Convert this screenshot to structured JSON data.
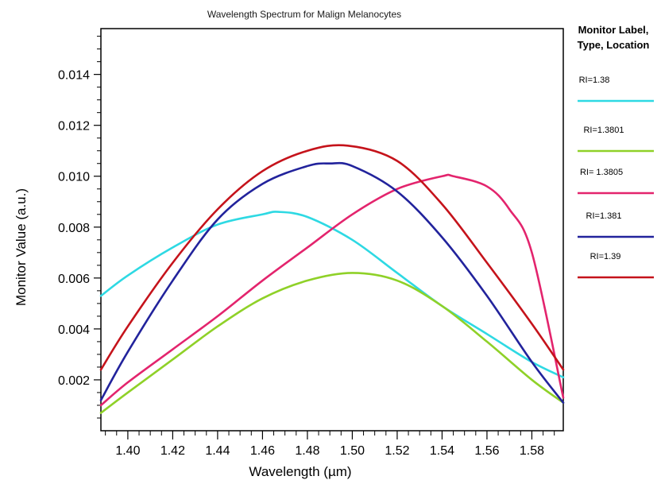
{
  "chart_data": {
    "type": "line",
    "title": "Wavelength Spectrum for Malign Melanocytes",
    "xlabel": "Wavelength (µm)",
    "ylabel": "Monitor Value (a.u.)",
    "xlim": [
      1.388,
      1.594
    ],
    "ylim": [
      0.0,
      0.0158
    ],
    "xticks": [
      "1.40",
      "1.42",
      "1.44",
      "1.46",
      "1.48",
      "1.50",
      "1.52",
      "1.54",
      "1.56",
      "1.58"
    ],
    "yticks": [
      "0.002",
      "0.004",
      "0.006",
      "0.008",
      "0.010",
      "0.012",
      "0.014"
    ],
    "grid": false,
    "legend_title": [
      "Monitor Label,",
      "Type, Location"
    ],
    "legend_position": "right",
    "series": [
      {
        "name": "RI=1.38",
        "color": "#2ed9e3",
        "x": [
          1.388,
          1.4,
          1.42,
          1.44,
          1.46,
          1.467,
          1.48,
          1.5,
          1.52,
          1.54,
          1.56,
          1.58,
          1.594
        ],
        "y": [
          0.0053,
          0.0061,
          0.0072,
          0.0081,
          0.0085,
          0.0086,
          0.0084,
          0.0075,
          0.0062,
          0.0049,
          0.0038,
          0.0027,
          0.0021
        ]
      },
      {
        "name": "RI=1.3801",
        "color": "#8fd128",
        "x": [
          1.388,
          1.4,
          1.42,
          1.44,
          1.46,
          1.48,
          1.5,
          1.52,
          1.54,
          1.56,
          1.58,
          1.594
        ],
        "y": [
          0.0007,
          0.0015,
          0.0028,
          0.0041,
          0.0052,
          0.0059,
          0.0062,
          0.0059,
          0.0049,
          0.0035,
          0.002,
          0.0011
        ]
      },
      {
        "name": "RI= 1.3805",
        "color": "#e3246d",
        "x": [
          1.388,
          1.4,
          1.42,
          1.44,
          1.46,
          1.48,
          1.5,
          1.52,
          1.54,
          1.545,
          1.56,
          1.57,
          1.58,
          1.594
        ],
        "y": [
          0.001,
          0.0019,
          0.0032,
          0.0045,
          0.0059,
          0.0072,
          0.0085,
          0.0095,
          0.01,
          0.01,
          0.0096,
          0.0087,
          0.007,
          0.0013
        ]
      },
      {
        "name": "RI=1.381",
        "color": "#22239c",
        "x": [
          1.388,
          1.4,
          1.42,
          1.44,
          1.46,
          1.48,
          1.49,
          1.5,
          1.52,
          1.54,
          1.56,
          1.58,
          1.594
        ],
        "y": [
          0.0012,
          0.0031,
          0.0059,
          0.0083,
          0.0097,
          0.0104,
          0.0105,
          0.0104,
          0.0094,
          0.0076,
          0.0053,
          0.0027,
          0.0011
        ]
      },
      {
        "name": "RI=1.39",
        "color": "#c5131b",
        "x": [
          1.388,
          1.4,
          1.42,
          1.44,
          1.46,
          1.48,
          1.498,
          1.52,
          1.54,
          1.56,
          1.58,
          1.594
        ],
        "y": [
          0.0024,
          0.0041,
          0.0066,
          0.0087,
          0.0102,
          0.011,
          0.0112,
          0.0106,
          0.0089,
          0.0066,
          0.0042,
          0.0024
        ]
      }
    ]
  }
}
